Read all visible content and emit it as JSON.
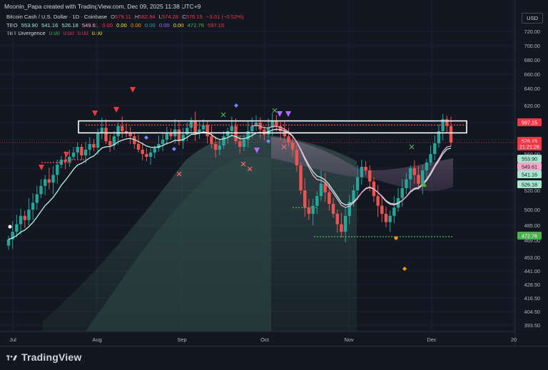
{
  "header": {
    "author_line": "Moonin_Papa created with TradingView.com, Dec 09, 2025 11:38 UTC+9",
    "currency": "USD"
  },
  "legend": {
    "symbol": "Bitcoin Cash / U.S. Dollar · 1D · Coinbase",
    "o_label": "O",
    "o": "579.11",
    "h_label": "H",
    "h": "582.94",
    "l_label": "L",
    "l": "574.28",
    "c_label": "C",
    "c": "576.15",
    "change": "−3.01 (−0.52%)",
    "tbo_name": "TBO",
    "tbo_values": [
      "553.90",
      "541.16",
      "526.18",
      "549.61",
      "0.00",
      "0.00",
      "0.00",
      "0.00",
      "0.00",
      "0.00",
      "472.76",
      "597.15"
    ],
    "tbt_name": "TBT Divergence",
    "tbt_values": [
      "0.00",
      "0.00",
      "0.00",
      "0.00"
    ]
  },
  "chart_data": {
    "type": "candlestick",
    "y_ticks": [
      "720.00",
      "700.00",
      "680.00",
      "660.00",
      "640.00",
      "620.00",
      "600.00",
      "580.00",
      "560.00",
      "540.00",
      "520.00",
      "500.00",
      "485.00",
      "469.00",
      "453.00",
      "441.00",
      "428.50",
      "416.50",
      "404.50",
      "393.50"
    ],
    "x_ticks": [
      "Jul",
      "Aug",
      "Sep",
      "Oct",
      "Nov",
      "Dec",
      "20"
    ],
    "price_labels": [
      {
        "value": "597.15",
        "color": "#f23645",
        "text_color": "#ffffff"
      },
      {
        "value": "576.15",
        "color": "#f23645",
        "text_color": "#ffffff"
      },
      {
        "value": "21:21:28",
        "color": "#f23645",
        "text_color": "#ffffff"
      },
      {
        "value": "553.90",
        "color": "#a8e6cf",
        "text_color": "#131722"
      },
      {
        "value": "549.61",
        "color": "#f7a6c8",
        "text_color": "#131722"
      },
      {
        "value": "541.16",
        "color": "#a8e6cf",
        "text_color": "#131722"
      },
      {
        "value": "526.18",
        "color": "#a8e6cf",
        "text_color": "#131722"
      },
      {
        "value": "472.76",
        "color": "#4caf50",
        "text_color": "#ffffff"
      }
    ],
    "resistance_zone": {
      "low": 588,
      "high": 602
    },
    "support_level": 472.76,
    "closes": [
      470,
      478,
      486,
      494,
      490,
      500,
      507,
      516,
      524,
      530,
      527,
      534,
      545,
      552,
      549,
      556,
      562,
      570,
      558,
      566,
      574,
      569,
      588,
      594,
      578,
      572,
      584,
      596,
      590,
      588,
      584,
      574,
      566,
      560,
      556,
      562,
      568,
      574,
      580,
      588,
      584,
      592,
      578,
      586,
      594,
      602,
      588,
      592,
      597,
      584,
      574,
      566,
      572,
      584,
      590,
      596,
      578,
      570,
      580,
      590,
      596,
      600,
      592,
      586,
      594,
      602,
      596,
      590,
      584,
      576,
      566,
      544,
      520,
      502,
      496,
      504,
      514,
      526,
      518,
      506,
      496,
      486,
      478,
      494,
      508,
      520,
      532,
      542,
      538,
      528,
      514,
      504,
      496,
      488,
      494,
      502,
      512,
      522,
      530,
      540,
      534,
      526,
      538,
      548,
      560,
      575,
      590,
      604,
      596,
      576
    ]
  }
}
